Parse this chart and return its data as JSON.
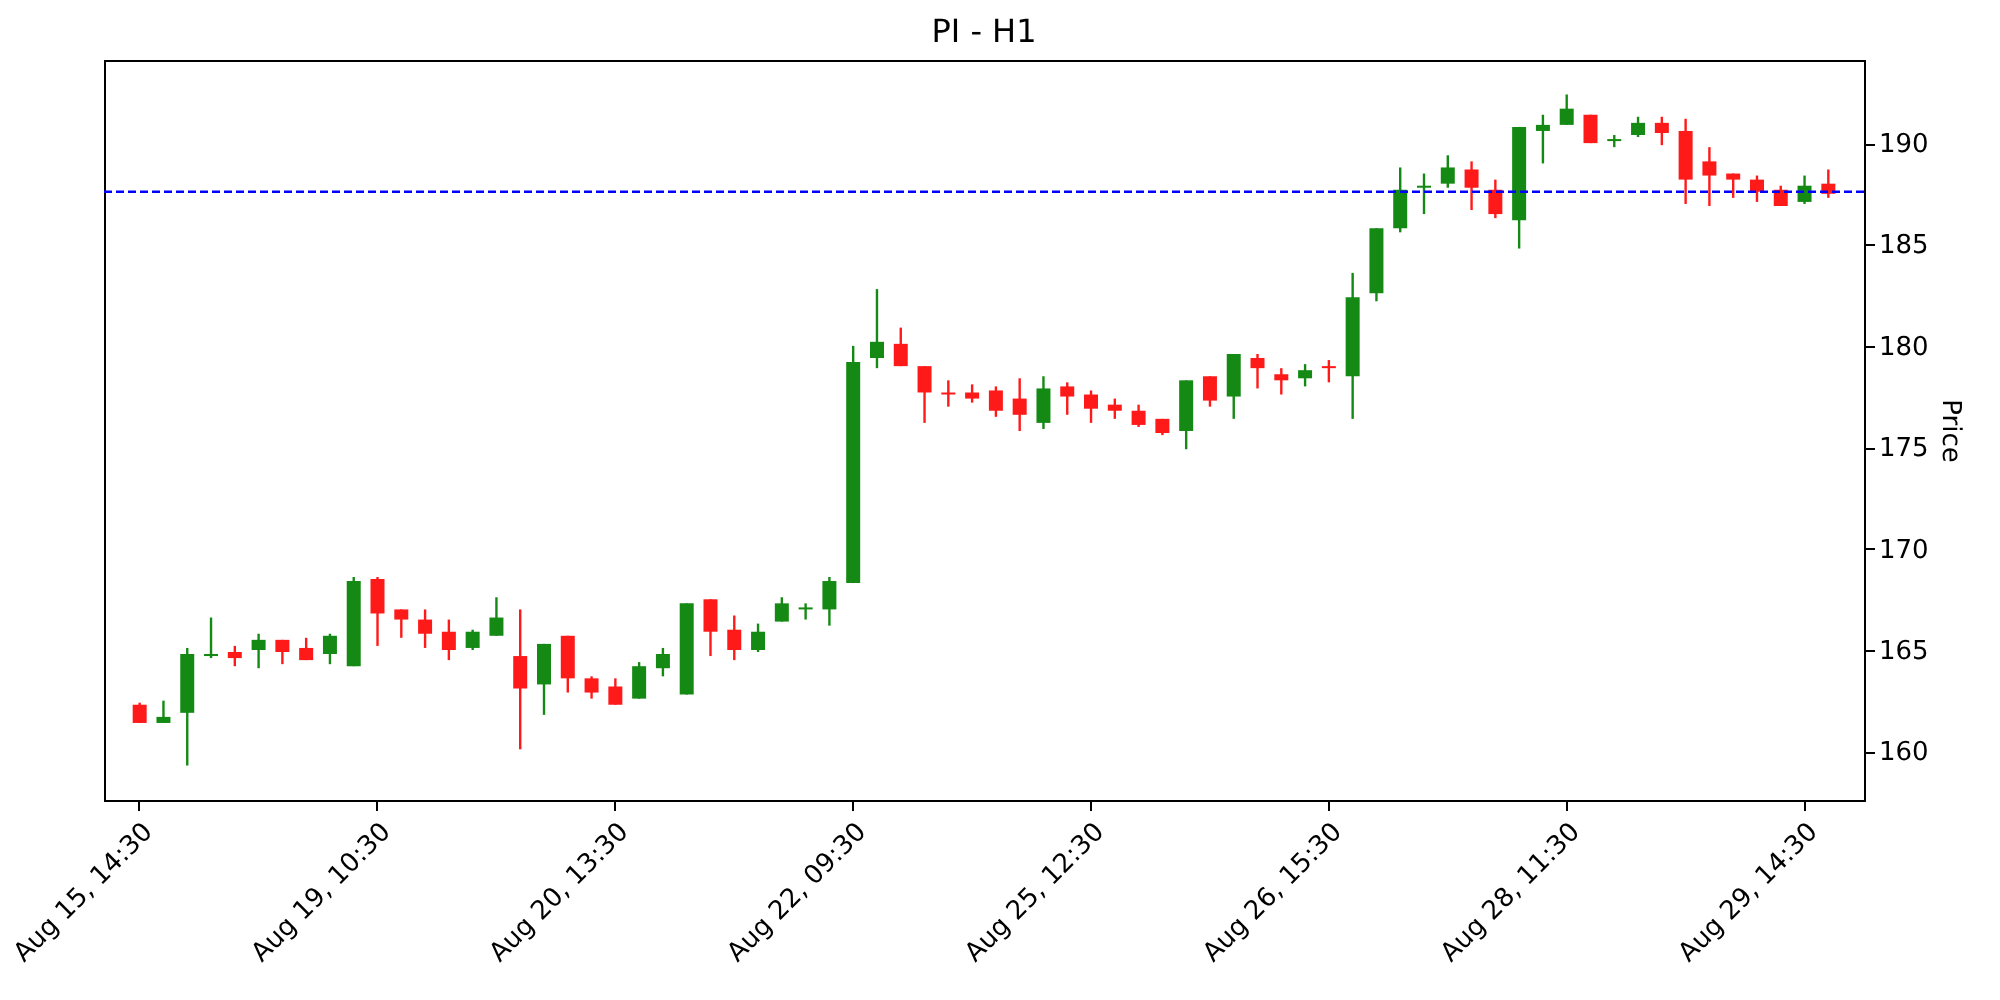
{
  "chart_data": {
    "type": "candlestick",
    "title": "PI - H1",
    "ylabel": "Price",
    "ylim": [
      157.6,
      194.1
    ],
    "yticks": [
      160,
      165,
      170,
      175,
      180,
      185,
      190
    ],
    "categories": [
      "Aug 15, 14:30",
      null,
      null,
      null,
      null,
      null,
      null,
      null,
      null,
      null,
      "Aug 19, 10:30",
      null,
      null,
      null,
      null,
      null,
      null,
      null,
      null,
      null,
      "Aug 20, 13:30",
      null,
      null,
      null,
      null,
      null,
      null,
      null,
      null,
      null,
      "Aug 22, 09:30",
      null,
      null,
      null,
      null,
      null,
      null,
      null,
      null,
      null,
      "Aug 25, 12:30",
      null,
      null,
      null,
      null,
      null,
      null,
      null,
      null,
      null,
      "Aug 26, 15:30",
      null,
      null,
      null,
      null,
      null,
      null,
      null,
      null,
      null,
      "Aug 28, 11:30",
      null,
      null,
      null,
      null,
      null,
      null,
      null,
      null,
      null,
      "Aug 29, 14:30",
      null
    ],
    "ohlc": [
      [
        162.3,
        162.4,
        161.4,
        161.4
      ],
      [
        161.4,
        162.5,
        161.4,
        161.7
      ],
      [
        161.9,
        165.1,
        159.3,
        164.8
      ],
      [
        164.7,
        166.6,
        164.6,
        164.8
      ],
      [
        164.9,
        165.2,
        164.2,
        164.6
      ],
      [
        165.0,
        165.8,
        164.1,
        165.5
      ],
      [
        165.5,
        165.5,
        164.3,
        164.9
      ],
      [
        165.1,
        165.6,
        164.5,
        164.5
      ],
      [
        164.8,
        165.8,
        164.3,
        165.7
      ],
      [
        164.2,
        168.6,
        164.2,
        168.4
      ],
      [
        168.5,
        168.6,
        165.2,
        166.8
      ],
      [
        167.0,
        167.0,
        165.6,
        166.5
      ],
      [
        166.5,
        167.0,
        165.1,
        165.8
      ],
      [
        165.9,
        166.5,
        164.5,
        165.0
      ],
      [
        165.1,
        166.0,
        165.0,
        165.9
      ],
      [
        165.7,
        167.6,
        165.7,
        166.6
      ],
      [
        164.7,
        167.0,
        160.1,
        163.1
      ],
      [
        163.3,
        165.3,
        161.8,
        165.3
      ],
      [
        165.7,
        165.7,
        162.9,
        163.6
      ],
      [
        163.6,
        163.7,
        162.6,
        162.9
      ],
      [
        163.2,
        163.6,
        162.3,
        162.3
      ],
      [
        162.6,
        164.4,
        162.6,
        164.2
      ],
      [
        164.1,
        165.1,
        163.7,
        164.8
      ],
      [
        162.8,
        167.3,
        162.8,
        167.3
      ],
      [
        167.5,
        167.5,
        164.7,
        165.9
      ],
      [
        166.0,
        166.7,
        164.5,
        165.0
      ],
      [
        165.0,
        166.3,
        164.9,
        165.9
      ],
      [
        166.4,
        167.6,
        166.4,
        167.3
      ],
      [
        167.0,
        167.3,
        166.5,
        167.1
      ],
      [
        167.0,
        168.6,
        166.2,
        168.4
      ],
      [
        168.3,
        180.0,
        168.3,
        179.2
      ],
      [
        179.4,
        182.8,
        178.9,
        180.2
      ],
      [
        180.1,
        180.9,
        179.0,
        179.0
      ],
      [
        179.0,
        179.0,
        176.2,
        177.7
      ],
      [
        177.7,
        178.3,
        177.0,
        177.6
      ],
      [
        177.7,
        178.1,
        177.2,
        177.4
      ],
      [
        177.8,
        178.0,
        176.5,
        176.8
      ],
      [
        177.4,
        178.4,
        175.8,
        176.6
      ],
      [
        176.2,
        178.5,
        175.9,
        177.9
      ],
      [
        178.0,
        178.2,
        176.6,
        177.5
      ],
      [
        177.6,
        177.8,
        176.2,
        176.9
      ],
      [
        177.1,
        177.4,
        176.4,
        176.8
      ],
      [
        176.8,
        177.1,
        176.0,
        176.1
      ],
      [
        176.4,
        176.4,
        175.6,
        175.7
      ],
      [
        175.8,
        178.3,
        174.9,
        178.3
      ],
      [
        178.5,
        178.5,
        177.0,
        177.3
      ],
      [
        177.5,
        179.6,
        176.4,
        179.6
      ],
      [
        179.4,
        179.6,
        177.9,
        178.9
      ],
      [
        178.6,
        178.9,
        177.6,
        178.3
      ],
      [
        178.4,
        179.1,
        178.0,
        178.8
      ],
      [
        179.0,
        179.3,
        178.2,
        178.9
      ],
      [
        178.5,
        183.6,
        176.4,
        182.4
      ],
      [
        182.6,
        185.8,
        182.2,
        185.8
      ],
      [
        185.8,
        188.8,
        185.6,
        187.7
      ],
      [
        187.8,
        188.5,
        186.5,
        187.9
      ],
      [
        188.0,
        189.4,
        187.8,
        188.8
      ],
      [
        188.7,
        189.1,
        186.7,
        187.8
      ],
      [
        187.7,
        188.2,
        186.3,
        186.5
      ],
      [
        186.2,
        190.8,
        184.8,
        190.8
      ],
      [
        190.6,
        191.4,
        189.0,
        190.9
      ],
      [
        190.9,
        192.4,
        190.9,
        191.7
      ],
      [
        191.4,
        191.4,
        190.0,
        190.0
      ],
      [
        190.1,
        190.4,
        189.8,
        190.2
      ],
      [
        190.4,
        191.3,
        190.3,
        191.0
      ],
      [
        191.0,
        191.3,
        189.9,
        190.5
      ],
      [
        190.6,
        191.2,
        187.0,
        188.2
      ],
      [
        189.1,
        189.8,
        186.9,
        188.4
      ],
      [
        188.5,
        188.5,
        187.3,
        188.2
      ],
      [
        188.2,
        188.4,
        187.1,
        187.6
      ],
      [
        187.7,
        187.9,
        186.9,
        186.9
      ],
      [
        187.1,
        188.4,
        187.0,
        187.9
      ],
      [
        188.0,
        188.7,
        187.3,
        187.5
      ]
    ],
    "colors": [
      "#ff1a1a",
      "#148a14",
      "#148a14",
      "#148a14",
      "#ff1a1a",
      "#148a14",
      "#ff1a1a",
      "#ff1a1a",
      "#148a14",
      "#148a14",
      "#ff1a1a",
      "#ff1a1a",
      "#ff1a1a",
      "#ff1a1a",
      "#148a14",
      "#148a14",
      "#ff1a1a",
      "#148a14",
      "#ff1a1a",
      "#ff1a1a",
      "#ff1a1a",
      "#148a14",
      "#148a14",
      "#148a14",
      "#ff1a1a",
      "#ff1a1a",
      "#148a14",
      "#148a14",
      "#148a14",
      "#148a14",
      "#148a14",
      "#148a14",
      "#ff1a1a",
      "#ff1a1a",
      "#ff1a1a",
      "#ff1a1a",
      "#ff1a1a",
      "#ff1a1a",
      "#148a14",
      "#ff1a1a",
      "#ff1a1a",
      "#ff1a1a",
      "#ff1a1a",
      "#ff1a1a",
      "#148a14",
      "#ff1a1a",
      "#148a14",
      "#ff1a1a",
      "#ff1a1a",
      "#148a14",
      "#ff1a1a",
      "#148a14",
      "#148a14",
      "#148a14",
      "#148a14",
      "#148a14",
      "#ff1a1a",
      "#ff1a1a",
      "#148a14",
      "#148a14",
      "#148a14",
      "#ff1a1a",
      "#148a14",
      "#148a14",
      "#ff1a1a",
      "#ff1a1a",
      "#ff1a1a",
      "#ff1a1a",
      "#ff1a1a",
      "#ff1a1a",
      "#148a14",
      "#ff1a1a"
    ],
    "ref_lines": [
      {
        "axis": "y",
        "value": 187.6,
        "color": "#0000ff",
        "line_style": "dashed"
      }
    ]
  }
}
